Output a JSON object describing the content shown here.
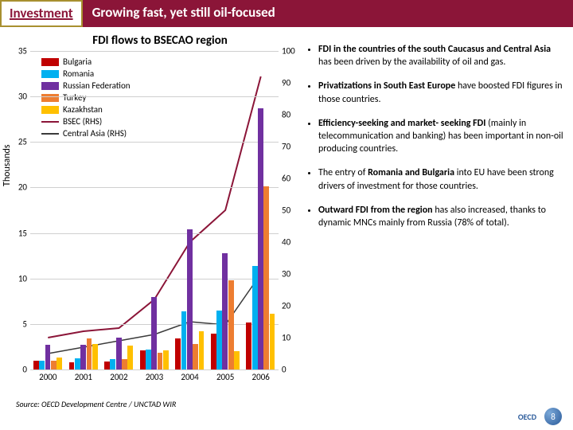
{
  "header": {
    "investment_label": "Investment",
    "title": "Growing fast, yet still oil-focused"
  },
  "chart": {
    "title": "FDI flows to BSECAO region",
    "ylabel": "Thousands",
    "type": "bar+line",
    "x_categories": [
      "2000",
      "2001",
      "2002",
      "2003",
      "2004",
      "2005",
      "2006"
    ],
    "left_axis": {
      "min": 0,
      "max": 35,
      "step": 5
    },
    "right_axis": {
      "min": 0,
      "max": 100,
      "step": 10
    },
    "grid_color": "#cfcfcf",
    "series_bar": [
      {
        "name": "Bulgaria",
        "color": "#c00000",
        "values": [
          1.0,
          0.8,
          0.9,
          2.1,
          3.4,
          3.9,
          5.2
        ]
      },
      {
        "name": "Romania",
        "color": "#00b0f0",
        "values": [
          1.0,
          1.2,
          1.1,
          2.2,
          6.4,
          6.5,
          11.4
        ]
      },
      {
        "name": "Russian Federation",
        "color": "#7030a0",
        "values": [
          2.7,
          2.7,
          3.5,
          8.0,
          15.4,
          12.8,
          28.7
        ]
      },
      {
        "name": "Turkey",
        "color": "#ed7d31",
        "values": [
          1.0,
          3.4,
          1.1,
          1.8,
          2.8,
          9.8,
          20.1
        ]
      },
      {
        "name": "Kazakhstan",
        "color": "#ffc000",
        "values": [
          1.3,
          2.8,
          2.6,
          2.1,
          4.2,
          2.0,
          6.1
        ]
      }
    ],
    "series_line": [
      {
        "name": "BSEC (RHS)",
        "color": "#8b1538",
        "width": 2,
        "values": [
          10,
          12,
          13,
          22,
          40,
          50,
          92
        ]
      },
      {
        "name": "Central Asia (RHS)",
        "color": "#3b3b3b",
        "width": 1.5,
        "values": [
          5,
          7,
          9,
          11,
          15,
          14,
          30
        ]
      }
    ]
  },
  "bullets": [
    "<b>FDI in the countries of the south Caucasus and Central Asia</b> has been driven by the availability of oil and gas.",
    "<b>Privatizations in South East Europe</b> have boosted FDI figures in those countries.",
    "<b>Efficiency-seeking  and market- seeking FDI</b> (mainly in telecommunication and banking) has been important in non-oil producing countries.",
    "The entry of <b>Romania and Bulgaria</b> into EU have been strong drivers of investment for those countries.",
    "<b>Outward FDI from the region</b> has also increased, thanks to dynamic MNCs mainly from Russia (78% of total)."
  ],
  "source": {
    "label": "Source",
    "text": "OECD Development Centre / UNCTAD WIR"
  },
  "footer": {
    "page": "8",
    "logo": "OECD"
  }
}
